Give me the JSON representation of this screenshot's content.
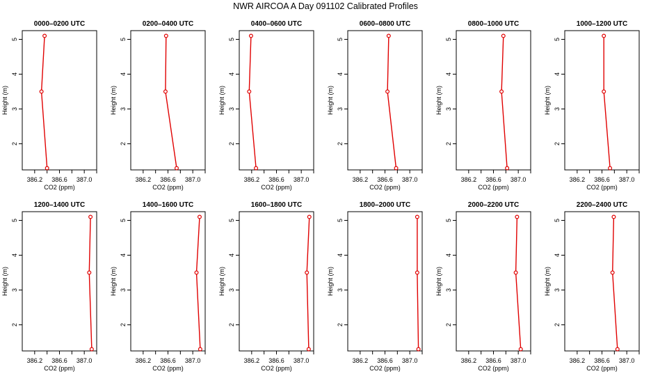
{
  "title": "NWR AIRCOA A  Day 091102  Calibrated Profiles",
  "colors": {
    "line": "#e00000",
    "axis": "#000000",
    "background": "#ffffff"
  },
  "chart_data": [
    {
      "type": "line",
      "title": "0000–0200 UTC",
      "xlabel": "CO2 (ppm)",
      "ylabel": "Height (m)",
      "xlim": [
        386.0,
        387.2
      ],
      "ylim": [
        1.25,
        5.25
      ],
      "xticks": [
        386.2,
        386.6,
        387.0
      ],
      "xtick_labels": [
        "386.2",
        "386.6",
        "387.0"
      ],
      "yticks": [
        2,
        3,
        4,
        5
      ],
      "ytick_labels": [
        "2",
        "3",
        "4",
        "5"
      ],
      "x": [
        386.4,
        386.31,
        386.36
      ],
      "y": [
        1.3,
        3.5,
        5.1
      ]
    },
    {
      "type": "line",
      "title": "0200–0400 UTC",
      "xlabel": "CO2 (ppm)",
      "ylabel": "Height (m)",
      "xlim": [
        386.0,
        387.2
      ],
      "ylim": [
        1.25,
        5.25
      ],
      "xticks": [
        386.2,
        386.6,
        387.0
      ],
      "xtick_labels": [
        "386.2",
        "386.6",
        "387.0"
      ],
      "yticks": [
        2,
        3,
        4,
        5
      ],
      "ytick_labels": [
        "2",
        "3",
        "4",
        "5"
      ],
      "x": [
        386.74,
        386.56,
        386.57
      ],
      "y": [
        1.3,
        3.5,
        5.1
      ]
    },
    {
      "type": "line",
      "title": "0400–0600 UTC",
      "xlabel": "CO2 (ppm)",
      "ylabel": "Height (m)",
      "xlim": [
        386.0,
        387.2
      ],
      "ylim": [
        1.25,
        5.25
      ],
      "xticks": [
        386.2,
        386.6,
        387.0
      ],
      "xtick_labels": [
        "386.2",
        "386.6",
        "387.0"
      ],
      "yticks": [
        2,
        3,
        4,
        5
      ],
      "ytick_labels": [
        "2",
        "3",
        "4",
        "5"
      ],
      "x": [
        386.27,
        386.16,
        386.19
      ],
      "y": [
        1.3,
        3.5,
        5.1
      ]
    },
    {
      "type": "line",
      "title": "0600–0800 UTC",
      "xlabel": "CO2 (ppm)",
      "ylabel": "Height (m)",
      "xlim": [
        386.0,
        387.2
      ],
      "ylim": [
        1.25,
        5.25
      ],
      "xticks": [
        386.2,
        386.6,
        387.0
      ],
      "xtick_labels": [
        "386.2",
        "386.6",
        "387.0"
      ],
      "yticks": [
        2,
        3,
        4,
        5
      ],
      "ytick_labels": [
        "2",
        "3",
        "4",
        "5"
      ],
      "x": [
        386.78,
        386.64,
        386.66
      ],
      "y": [
        1.3,
        3.5,
        5.1
      ]
    },
    {
      "type": "line",
      "title": "0800–1000 UTC",
      "xlabel": "CO2 (ppm)",
      "ylabel": "Height (m)",
      "xlim": [
        386.0,
        387.2
      ],
      "ylim": [
        1.25,
        5.25
      ],
      "xticks": [
        386.2,
        386.6,
        387.0
      ],
      "xtick_labels": [
        "386.2",
        "386.6",
        "387.0"
      ],
      "yticks": [
        2,
        3,
        4,
        5
      ],
      "ytick_labels": [
        "2",
        "3",
        "4",
        "5"
      ],
      "x": [
        386.82,
        386.73,
        386.76
      ],
      "y": [
        1.3,
        3.5,
        5.1
      ]
    },
    {
      "type": "line",
      "title": "1000–1200 UTC",
      "xlabel": "CO2 (ppm)",
      "ylabel": "Height (m)",
      "xlim": [
        386.0,
        387.2
      ],
      "ylim": [
        1.25,
        5.25
      ],
      "xticks": [
        386.2,
        386.6,
        387.0
      ],
      "xtick_labels": [
        "386.2",
        "386.6",
        "387.0"
      ],
      "yticks": [
        2,
        3,
        4,
        5
      ],
      "ytick_labels": [
        "2",
        "3",
        "4",
        "5"
      ],
      "x": [
        386.73,
        386.63,
        386.63
      ],
      "y": [
        1.3,
        3.5,
        5.1
      ]
    },
    {
      "type": "line",
      "title": "1200–1400 UTC",
      "xlabel": "CO2 (ppm)",
      "ylabel": "Height (m)",
      "xlim": [
        386.0,
        387.2
      ],
      "ylim": [
        1.25,
        5.25
      ],
      "xticks": [
        386.2,
        386.6,
        387.0
      ],
      "xtick_labels": [
        "386.2",
        "386.6",
        "387.0"
      ],
      "yticks": [
        2,
        3,
        4,
        5
      ],
      "ytick_labels": [
        "2",
        "3",
        "4",
        "5"
      ],
      "x": [
        387.12,
        387.08,
        387.1
      ],
      "y": [
        1.3,
        3.5,
        5.1
      ]
    },
    {
      "type": "line",
      "title": "1400–1600 UTC",
      "xlabel": "CO2 (ppm)",
      "ylabel": "Height (m)",
      "xlim": [
        386.0,
        387.2
      ],
      "ylim": [
        1.25,
        5.25
      ],
      "xticks": [
        386.2,
        386.6,
        387.0
      ],
      "xtick_labels": [
        "386.2",
        "386.6",
        "387.0"
      ],
      "yticks": [
        2,
        3,
        4,
        5
      ],
      "ytick_labels": [
        "2",
        "3",
        "4",
        "5"
      ],
      "x": [
        387.12,
        387.06,
        387.11
      ],
      "y": [
        1.3,
        3.5,
        5.1
      ]
    },
    {
      "type": "line",
      "title": "1600–1800 UTC",
      "xlabel": "CO2 (ppm)",
      "ylabel": "Height (m)",
      "xlim": [
        386.0,
        387.2
      ],
      "ylim": [
        1.25,
        5.25
      ],
      "xticks": [
        386.2,
        386.6,
        387.0
      ],
      "xtick_labels": [
        "386.2",
        "386.6",
        "387.0"
      ],
      "yticks": [
        2,
        3,
        4,
        5
      ],
      "ytick_labels": [
        "2",
        "3",
        "4",
        "5"
      ],
      "x": [
        387.12,
        387.09,
        387.13
      ],
      "y": [
        1.3,
        3.5,
        5.1
      ]
    },
    {
      "type": "line",
      "title": "1800–2000 UTC",
      "xlabel": "CO2 (ppm)",
      "ylabel": "Height (m)",
      "xlim": [
        386.0,
        387.2
      ],
      "ylim": [
        1.25,
        5.25
      ],
      "xticks": [
        386.2,
        386.6,
        387.0
      ],
      "xtick_labels": [
        "386.2",
        "386.6",
        "387.0"
      ],
      "yticks": [
        2,
        3,
        4,
        5
      ],
      "ytick_labels": [
        "2",
        "3",
        "4",
        "5"
      ],
      "x": [
        387.14,
        387.12,
        387.12
      ],
      "y": [
        1.3,
        3.5,
        5.1
      ]
    },
    {
      "type": "line",
      "title": "2000–2200 UTC",
      "xlabel": "CO2 (ppm)",
      "ylabel": "Height (m)",
      "xlim": [
        386.0,
        387.2
      ],
      "ylim": [
        1.25,
        5.25
      ],
      "xticks": [
        386.2,
        386.6,
        387.0
      ],
      "xtick_labels": [
        "386.2",
        "386.6",
        "387.0"
      ],
      "yticks": [
        2,
        3,
        4,
        5
      ],
      "ytick_labels": [
        "2",
        "3",
        "4",
        "5"
      ],
      "x": [
        387.04,
        386.96,
        386.98
      ],
      "y": [
        1.3,
        3.5,
        5.1
      ]
    },
    {
      "type": "line",
      "title": "2200–2400 UTC",
      "xlabel": "CO2 (ppm)",
      "ylabel": "Height (m)",
      "xlim": [
        386.0,
        387.2
      ],
      "ylim": [
        1.25,
        5.25
      ],
      "xticks": [
        386.2,
        386.6,
        387.0
      ],
      "xtick_labels": [
        "386.2",
        "386.6",
        "387.0"
      ],
      "yticks": [
        2,
        3,
        4,
        5
      ],
      "ytick_labels": [
        "2",
        "3",
        "4",
        "5"
      ],
      "x": [
        386.85,
        386.77,
        386.79
      ],
      "y": [
        1.3,
        3.5,
        5.1
      ]
    }
  ]
}
